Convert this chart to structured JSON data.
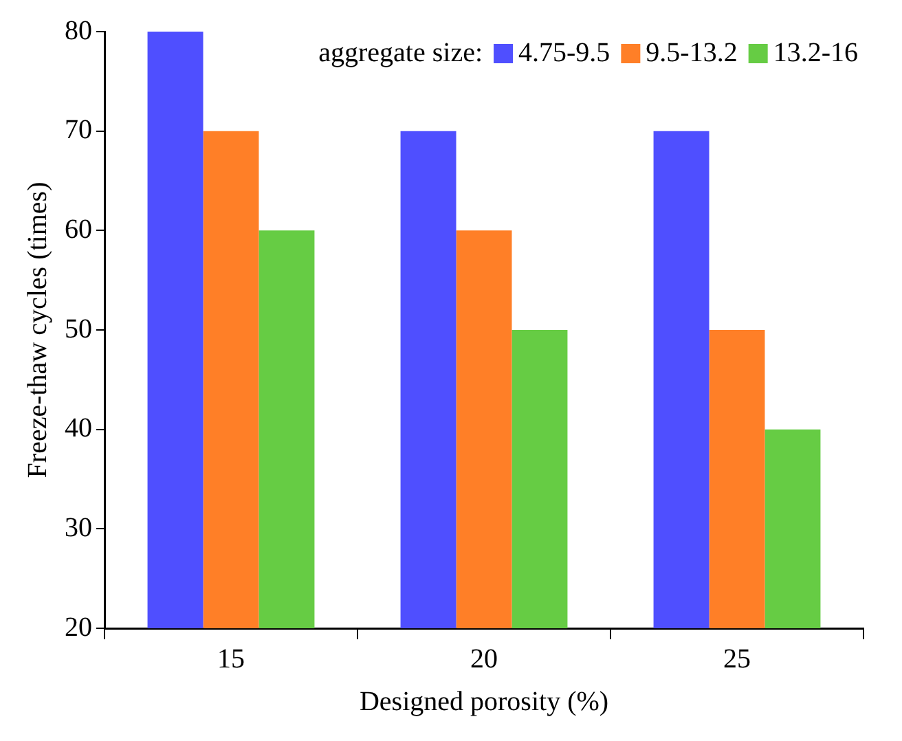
{
  "chart_data": {
    "type": "bar",
    "xlabel": "Designed porosity (%)",
    "ylabel": "Freeze-thaw cycles (times)",
    "legend_title": "aggregate size:",
    "categories": [
      "15",
      "20",
      "25"
    ],
    "series": [
      {
        "name": "4.75-9.5",
        "color": "#4f4fff",
        "values": [
          80,
          70,
          70
        ]
      },
      {
        "name": "9.5-13.2",
        "color": "#ff7f27",
        "values": [
          70,
          60,
          50
        ]
      },
      {
        "name": "13.2-16",
        "color": "#66cc44",
        "values": [
          60,
          50,
          40
        ]
      }
    ],
    "ylim": [
      20,
      80
    ],
    "yticks": [
      20,
      30,
      40,
      50,
      60,
      70,
      80
    ],
    "grid": false,
    "legend": "top right"
  }
}
